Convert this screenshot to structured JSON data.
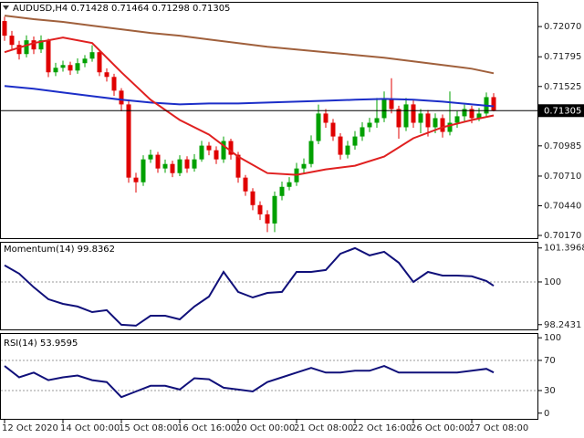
{
  "chart_data": [
    {
      "type": "candlestick",
      "title": "AUDUSD,H4 0.71428 0.71464 0.71298 0.71305",
      "open": [
        0.7212,
        0.71987,
        0.71903,
        0.7182,
        0.71945,
        0.71862,
        0.71945,
        0.71654,
        0.71695,
        0.7172,
        0.7167,
        0.71737,
        0.71778,
        0.71837,
        0.71654,
        0.71612,
        0.71487,
        0.71362,
        0.70696,
        0.70654,
        0.70862,
        0.70904,
        0.70779,
        0.7082,
        0.70737,
        0.70862,
        0.70779,
        0.70862,
        0.70987,
        0.70945,
        0.70862,
        0.71029,
        0.70904,
        0.70696,
        0.70571,
        0.70446,
        0.70362,
        0.70279,
        0.70529,
        0.70612,
        0.70654,
        0.70779,
        0.7082,
        0.71029,
        0.71279,
        0.71195,
        0.7107,
        0.70904,
        0.70987,
        0.7107,
        0.71154,
        0.71195,
        0.71237,
        0.71404,
        0.7132,
        0.71154,
        0.71362,
        0.71195,
        0.71279,
        0.71154,
        0.71237,
        0.71112,
        0.71195,
        0.71254,
        0.7132,
        0.71237,
        0.71279,
        0.71428
      ],
      "high": [
        0.7216,
        0.7203,
        0.7194,
        0.7199,
        0.7198,
        0.7199,
        0.7196,
        0.7174,
        0.7176,
        0.7175,
        0.7178,
        0.7181,
        0.719,
        0.7186,
        0.7169,
        0.7164,
        0.7151,
        0.7139,
        0.7074,
        0.709,
        0.7095,
        0.7093,
        0.7086,
        0.7085,
        0.709,
        0.7089,
        0.7091,
        0.7103,
        0.7102,
        0.7098,
        0.7107,
        0.7105,
        0.7093,
        0.7072,
        0.706,
        0.7048,
        0.704,
        0.7057,
        0.7066,
        0.707,
        0.7083,
        0.7087,
        0.7108,
        0.7136,
        0.7132,
        0.7123,
        0.711,
        0.7103,
        0.7112,
        0.712,
        0.7124,
        0.7142,
        0.7148,
        0.716,
        0.7135,
        0.7142,
        0.714,
        0.7132,
        0.7131,
        0.7128,
        0.7127,
        0.7148,
        0.713,
        0.7136,
        0.7135,
        0.7133,
        0.7147,
        0.71464
      ],
      "low": [
        0.7194,
        0.7186,
        0.7177,
        0.7179,
        0.7182,
        0.7183,
        0.7161,
        0.7162,
        0.7166,
        0.7163,
        0.7164,
        0.717,
        0.7175,
        0.7162,
        0.7157,
        0.7144,
        0.713,
        0.7065,
        0.7056,
        0.7062,
        0.7083,
        0.7074,
        0.7074,
        0.707,
        0.7071,
        0.7074,
        0.7075,
        0.7084,
        0.709,
        0.7082,
        0.7083,
        0.7086,
        0.7065,
        0.7053,
        0.704,
        0.7031,
        0.702,
        0.702,
        0.7049,
        0.7058,
        0.7062,
        0.7074,
        0.7079,
        0.71,
        0.7115,
        0.7103,
        0.7086,
        0.7087,
        0.7095,
        0.7103,
        0.7111,
        0.7115,
        0.712,
        0.7128,
        0.7105,
        0.7112,
        0.7115,
        0.711,
        0.7107,
        0.711,
        0.7106,
        0.7108,
        0.7115,
        0.712,
        0.7119,
        0.7121,
        0.7125,
        0.71298
      ],
      "close": [
        0.71987,
        0.71903,
        0.7182,
        0.71945,
        0.71862,
        0.71945,
        0.71654,
        0.71695,
        0.7172,
        0.7167,
        0.71737,
        0.71778,
        0.71837,
        0.71654,
        0.71612,
        0.71487,
        0.71362,
        0.70696,
        0.70654,
        0.70862,
        0.70904,
        0.70779,
        0.7082,
        0.70737,
        0.70862,
        0.70779,
        0.70862,
        0.70987,
        0.70945,
        0.70862,
        0.71029,
        0.70904,
        0.70696,
        0.70571,
        0.70446,
        0.70362,
        0.70279,
        0.70529,
        0.70612,
        0.70654,
        0.70779,
        0.7082,
        0.71029,
        0.71279,
        0.71195,
        0.7107,
        0.70904,
        0.70987,
        0.7107,
        0.71154,
        0.71195,
        0.71237,
        0.71404,
        0.7132,
        0.71154,
        0.71362,
        0.71195,
        0.71279,
        0.71154,
        0.71237,
        0.71112,
        0.71195,
        0.71254,
        0.7132,
        0.71237,
        0.71279,
        0.71428,
        0.71305
      ],
      "up_color": "#00a000",
      "down_color": "#e00000",
      "series": [
        {
          "color": "#a0603c",
          "x": [
            0,
            4,
            8,
            12,
            16,
            20,
            24,
            28,
            32,
            36,
            40,
            44,
            48,
            52,
            56,
            60,
            64,
            67
          ],
          "values": [
            0.7217,
            0.72137,
            0.72112,
            0.72078,
            0.72045,
            0.72012,
            0.71987,
            0.71953,
            0.7192,
            0.71887,
            0.71862,
            0.71837,
            0.71812,
            0.71787,
            0.71753,
            0.7172,
            0.71687,
            0.71645
          ]
        },
        {
          "color": "#1c2ec8",
          "x": [
            0,
            4,
            8,
            12,
            16,
            20,
            24,
            28,
            32,
            36,
            40,
            44,
            48,
            52,
            56,
            60,
            64,
            67
          ],
          "values": [
            0.71529,
            0.71504,
            0.7147,
            0.71437,
            0.71404,
            0.71379,
            0.71362,
            0.7137,
            0.7137,
            0.71379,
            0.71387,
            0.71395,
            0.71404,
            0.71412,
            0.71404,
            0.71387,
            0.71362,
            0.71345
          ]
        },
        {
          "color": "#e02020",
          "x": [
            0,
            4,
            8,
            12,
            16,
            20,
            24,
            28,
            32,
            36,
            40,
            44,
            48,
            52,
            56,
            60,
            64,
            67
          ],
          "values": [
            0.71837,
            0.7192,
            0.7197,
            0.7192,
            0.71654,
            0.71404,
            0.7122,
            0.71087,
            0.70887,
            0.70737,
            0.70721,
            0.70771,
            0.70804,
            0.70887,
            0.71054,
            0.71154,
            0.7122,
            0.71262
          ]
        }
      ],
      "current_price": 0.71305,
      "xlim": [
        -0.625,
        73.125
      ],
      "xticks": [
        {
          "value": 0,
          "label": "12 Oct 2020"
        },
        {
          "value": 8,
          "label": "14 Oct 00:00"
        },
        {
          "value": 16,
          "label": "15 Oct 08:00"
        },
        {
          "value": 24,
          "label": "16 Oct 16:00"
        },
        {
          "value": 32,
          "label": "20 Oct 00:00"
        },
        {
          "value": 40,
          "label": "21 Oct 08:00"
        },
        {
          "value": 48,
          "label": "22 Oct 16:00"
        },
        {
          "value": 56,
          "label": "26 Oct 00:00"
        },
        {
          "value": 64,
          "label": "27 Oct 08:00"
        }
      ],
      "ylim": [
        0.70137,
        0.72295
      ],
      "yticks": [
        {
          "value": 0.7207,
          "label": "0.72070"
        },
        0.71795,
        0.71525,
        0.70985,
        {
          "value": 0.7071,
          "label": "0.70710"
        },
        {
          "value": 0.7044,
          "label": "0.70440"
        },
        {
          "value": 0.7017,
          "label": "0.70170"
        }
      ]
    },
    {
      "type": "line",
      "title": "Momentum(14) 99.8362",
      "color": "#10107a",
      "x": [
        0,
        2,
        4,
        6,
        8,
        10,
        12,
        14,
        16,
        18,
        20,
        22,
        24,
        26,
        28,
        30,
        32,
        34,
        36,
        38,
        40,
        42,
        44,
        46,
        48,
        50,
        52,
        54,
        56,
        58,
        60,
        62,
        64,
        66,
        67
      ],
      "values": [
        100.68,
        100.34,
        99.78,
        99.29,
        99.1,
        98.99,
        98.76,
        98.84,
        98.24,
        98.2,
        98.61,
        98.61,
        98.46,
        98.99,
        99.4,
        100.41,
        99.59,
        99.36,
        99.55,
        99.59,
        100.41,
        100.41,
        100.49,
        101.16,
        101.39,
        101.09,
        101.24,
        100.79,
        100.0,
        100.41,
        100.26,
        100.26,
        100.23,
        100.04,
        99.84
      ],
      "ylim": [
        98.01,
        101.65
      ],
      "yticks": [
        101.3968,
        100,
        98.2431
      ],
      "levels": [
        100
      ]
    },
    {
      "type": "line",
      "title": "RSI(14) 53.9595",
      "color": "#10107a",
      "x": [
        0,
        2,
        4,
        6,
        8,
        10,
        12,
        14,
        16,
        18,
        20,
        22,
        24,
        26,
        28,
        30,
        32,
        34,
        36,
        38,
        40,
        42,
        44,
        46,
        48,
        50,
        52,
        54,
        56,
        58,
        60,
        62,
        64,
        66,
        67
      ],
      "values": [
        62.5,
        47.5,
        53.8,
        43.8,
        47.5,
        50,
        43.8,
        41.3,
        21.3,
        28.8,
        36.3,
        36.3,
        31.3,
        46.3,
        45,
        33.8,
        31.3,
        28.8,
        41.3,
        47.5,
        53.8,
        60,
        53.8,
        53.8,
        56.3,
        56.3,
        62.5,
        53.8,
        53.8,
        53.8,
        53.8,
        53.8,
        56.3,
        58.8,
        53.96
      ],
      "ylim": [
        -8.75,
        106.25
      ],
      "yticks": [
        100,
        70,
        30,
        0
      ],
      "levels": [
        70,
        30
      ]
    }
  ]
}
